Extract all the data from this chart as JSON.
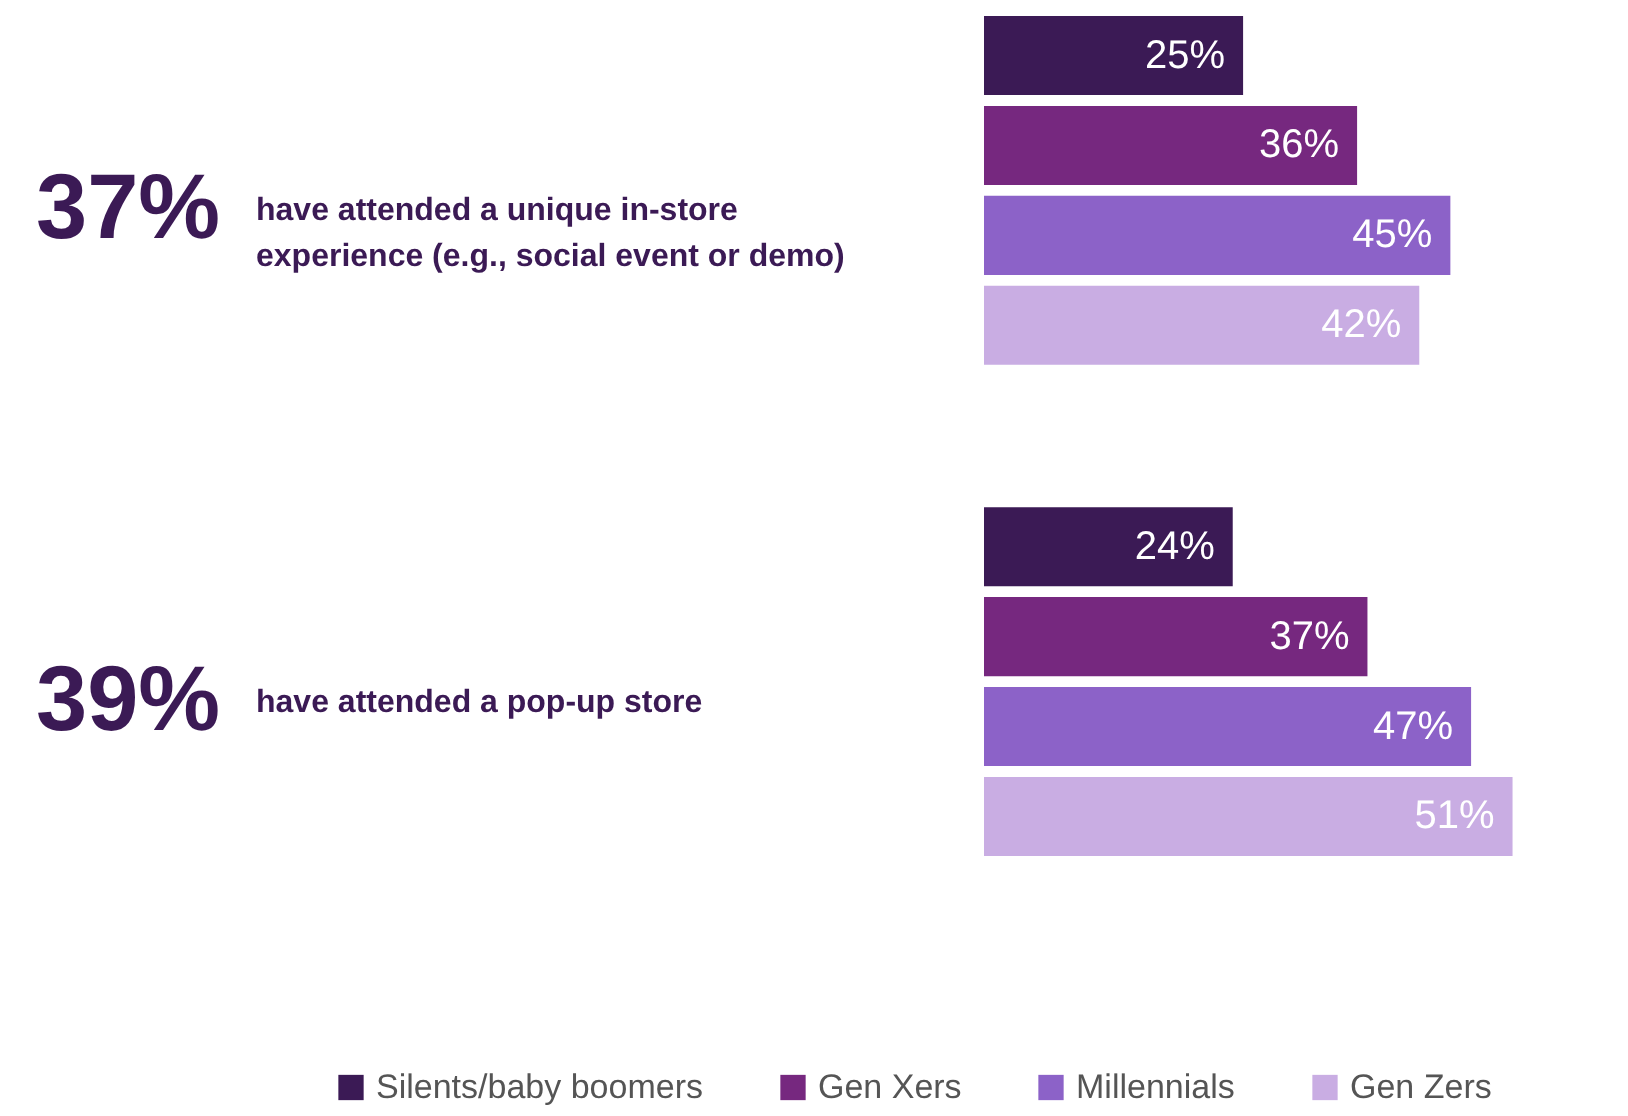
{
  "chart_data": {
    "type": "bar",
    "orientation": "horizontal",
    "categories": [
      "have attended a unique in-store experience (e.g., social event or demo)",
      "have attended a pop-up store"
    ],
    "annotations": [
      "37%",
      "39%"
    ],
    "legend": "bottom",
    "series": [
      {
        "name": "Silents/baby boomers",
        "color": "#3b1a55",
        "values": [
          25,
          24
        ],
        "value_labels": [
          "25%",
          "24%"
        ]
      },
      {
        "name": "Gen Xers",
        "color": "#76287f",
        "values": [
          36,
          37
        ],
        "value_labels": [
          "36%",
          "37%"
        ]
      },
      {
        "name": "Millennials",
        "color": "#8c62c8",
        "values": [
          45,
          47
        ],
        "value_labels": [
          "45%",
          "47%"
        ]
      },
      {
        "name": "Gen Zers",
        "color": "#c9ade3",
        "values": [
          42,
          51
        ],
        "value_labels": [
          "42%",
          "51%"
        ]
      }
    ]
  }
}
